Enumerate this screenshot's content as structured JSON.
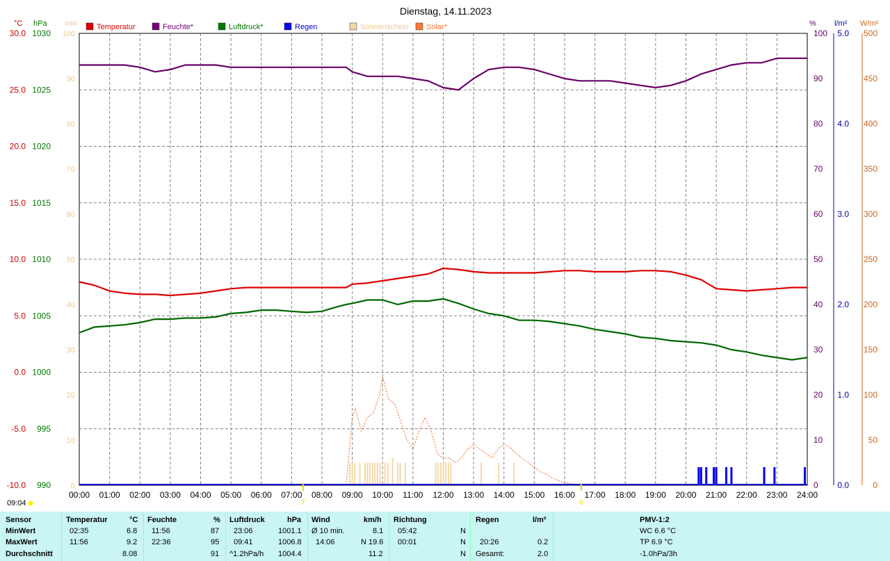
{
  "chart_data": {
    "type": "line",
    "title": "Dienstag, 14.11.2023",
    "x_ticks": [
      "00:00",
      "01:00",
      "02:00",
      "03:00",
      "04:00",
      "05:00",
      "06:00",
      "07:00",
      "08:00",
      "09:00",
      "10:00",
      "11:00",
      "12:00",
      "13:00",
      "14:00",
      "15:00",
      "16:00",
      "17:00",
      "18:00",
      "19:00",
      "20:00",
      "21:00",
      "22:00",
      "23:00",
      "24:00"
    ],
    "axes": {
      "temperature": {
        "unit": "°C",
        "ylim": [
          -10,
          30
        ],
        "ticks": [
          "30.0",
          "25.0",
          "20.0",
          "15.0",
          "10.0",
          "5.0",
          "0.0",
          "-5.0",
          "-10.0"
        ],
        "color": "#cc0000"
      },
      "pressure": {
        "unit": "hPa",
        "ylim": [
          990,
          1030
        ],
        "ticks": [
          "1030",
          "1025",
          "1020",
          "1015",
          "1010",
          "1005",
          "1000",
          "995",
          "990"
        ],
        "color": "#007700"
      },
      "sunshine": {
        "unit": "min",
        "ylim": [
          0,
          100
        ],
        "ticks": [
          "100",
          "90",
          "80",
          "70",
          "60",
          "50",
          "40",
          "30",
          "20",
          "10",
          "0"
        ],
        "color": "#f0c88c"
      },
      "humidity": {
        "unit": "%",
        "ylim": [
          0,
          100
        ],
        "ticks": [
          "100",
          "90",
          "80",
          "70",
          "60",
          "50",
          "40",
          "30",
          "20",
          "10",
          "0"
        ],
        "color": "#660066"
      },
      "rain": {
        "unit": "l/m²",
        "ylim": [
          0,
          5
        ],
        "ticks": [
          "5.0",
          "4.0",
          "3.0",
          "2.0",
          "1.0",
          "0.0"
        ],
        "color": "#0000aa"
      },
      "solar": {
        "unit": "W/m²",
        "ylim": [
          0,
          500
        ],
        "ticks": [
          "500",
          "450",
          "400",
          "350",
          "300",
          "250",
          "200",
          "150",
          "100",
          "50",
          "0"
        ],
        "color": "#cc6622"
      }
    },
    "legend": [
      {
        "name": "Temperatur",
        "color": "#e00000"
      },
      {
        "name": "Feuchte*",
        "color": "#770077"
      },
      {
        "name": "Luftdruck*",
        "color": "#007700"
      },
      {
        "name": "Regen",
        "color": "#0000ee"
      },
      {
        "name": "Sonnenschein",
        "color": "#f0d8a8"
      },
      {
        "name": "Solar*",
        "color": "#ff7733"
      }
    ],
    "series": [
      {
        "name": "Temperatur",
        "axis": "temperature",
        "color": "#dd0000",
        "x": [
          0,
          0.5,
          1,
          1.5,
          2,
          2.5,
          3,
          3.5,
          4,
          4.5,
          5,
          5.5,
          6,
          6.5,
          7,
          7.5,
          8,
          8.5,
          8.8,
          9,
          9.5,
          10,
          10.5,
          11,
          11.5,
          12,
          12.5,
          13,
          13.5,
          14,
          14.5,
          15,
          15.5,
          16,
          16.5,
          17,
          17.5,
          18,
          18.5,
          19,
          19.5,
          20,
          20.5,
          21,
          21.5,
          22,
          22.5,
          23,
          23.5,
          24
        ],
        "y": [
          8.0,
          7.7,
          7.2,
          7.0,
          6.9,
          6.9,
          6.8,
          6.9,
          7.0,
          7.2,
          7.4,
          7.5,
          7.5,
          7.5,
          7.5,
          7.5,
          7.5,
          7.5,
          7.5,
          7.8,
          7.9,
          8.1,
          8.3,
          8.5,
          8.7,
          9.2,
          9.1,
          8.9,
          8.8,
          8.8,
          8.8,
          8.8,
          8.9,
          9.0,
          9.0,
          8.9,
          8.9,
          8.9,
          9.0,
          9.0,
          8.9,
          8.6,
          8.2,
          7.4,
          7.3,
          7.2,
          7.3,
          7.4,
          7.5,
          7.5
        ]
      },
      {
        "name": "Feuchte*",
        "axis": "humidity",
        "color": "#660066",
        "x": [
          0,
          0.5,
          1,
          1.5,
          2,
          2.5,
          3,
          3.5,
          4,
          4.5,
          5,
          5.5,
          6,
          6.5,
          7,
          7.5,
          8,
          8.5,
          8.8,
          9,
          9.5,
          10,
          10.5,
          11,
          11.5,
          12,
          12.5,
          13,
          13.5,
          14,
          14.5,
          15,
          15.5,
          16,
          16.5,
          17,
          17.5,
          18,
          18.5,
          19,
          19.5,
          20,
          20.5,
          21,
          21.5,
          22,
          22.5,
          23,
          23.5,
          24
        ],
        "y": [
          93,
          93,
          93,
          93,
          92.5,
          91.5,
          92,
          93,
          93,
          93,
          92.5,
          92.5,
          92.5,
          92.5,
          92.5,
          92.5,
          92.5,
          92.5,
          92.5,
          91.5,
          90.5,
          90.5,
          90.5,
          90,
          89.5,
          88,
          87.5,
          90,
          92,
          92.5,
          92.5,
          92,
          91,
          90,
          89.5,
          89.5,
          89.5,
          89,
          88.5,
          88,
          88.5,
          89.5,
          91,
          92,
          93,
          93.5,
          93.5,
          94.5,
          94.5,
          94.5
        ]
      },
      {
        "name": "Luftdruck*",
        "axis": "pressure",
        "color": "#006600",
        "x": [
          0,
          0.5,
          1,
          1.5,
          2,
          2.5,
          3,
          3.5,
          4,
          4.5,
          5,
          5.5,
          6,
          6.5,
          7,
          7.5,
          8,
          8.5,
          8.8,
          9,
          9.5,
          10,
          10.5,
          11,
          11.5,
          12,
          12.5,
          13,
          13.5,
          14,
          14.5,
          15,
          15.5,
          16,
          16.5,
          17,
          17.5,
          18,
          18.5,
          19,
          19.5,
          20,
          20.5,
          21,
          21.5,
          22,
          22.5,
          23,
          23.5,
          24
        ],
        "y": [
          1003.5,
          1004.0,
          1004.1,
          1004.2,
          1004.4,
          1004.7,
          1004.7,
          1004.8,
          1004.8,
          1004.9,
          1005.2,
          1005.3,
          1005.5,
          1005.5,
          1005.4,
          1005.3,
          1005.4,
          1005.8,
          1006.0,
          1006.1,
          1006.4,
          1006.4,
          1006.0,
          1006.3,
          1006.3,
          1006.5,
          1006.1,
          1005.6,
          1005.2,
          1005.0,
          1004.6,
          1004.6,
          1004.5,
          1004.3,
          1004.1,
          1003.8,
          1003.6,
          1003.4,
          1003.1,
          1003.0,
          1002.8,
          1002.7,
          1002.6,
          1002.4,
          1002.0,
          1001.8,
          1001.5,
          1001.3,
          1001.1,
          1001.3
        ]
      },
      {
        "name": "Solar*",
        "axis": "solar",
        "color": "#ee6622",
        "dashed": true,
        "x": [
          8.8,
          9.0,
          9.1,
          9.3,
          9.5,
          9.7,
          9.9,
          10.0,
          10.2,
          10.4,
          10.6,
          10.8,
          11.0,
          11.2,
          11.4,
          11.6,
          11.8,
          12.0,
          12.2,
          12.4,
          12.6,
          12.8,
          13.0,
          13.2,
          13.4,
          13.6,
          13.8,
          14.0,
          14.2,
          14.4,
          14.6,
          14.8,
          15.0,
          15.2,
          15.4,
          15.6,
          15.8,
          16.0,
          16.3,
          16.5
        ],
        "y": [
          0,
          75,
          85,
          60,
          75,
          80,
          100,
          120,
          95,
          90,
          70,
          50,
          40,
          60,
          75,
          60,
          35,
          30,
          30,
          25,
          30,
          40,
          45,
          40,
          35,
          30,
          40,
          45,
          42,
          35,
          30,
          25,
          20,
          15,
          12,
          8,
          5,
          3,
          1,
          0
        ]
      }
    ],
    "sunshine_bars_minutes": [
      {
        "x": 8.92,
        "y": 5
      },
      {
        "x": 9.0,
        "y": 5
      },
      {
        "x": 9.08,
        "y": 5
      },
      {
        "x": 9.25,
        "y": 5
      },
      {
        "x": 9.42,
        "y": 5
      },
      {
        "x": 9.5,
        "y": 5
      },
      {
        "x": 9.58,
        "y": 5
      },
      {
        "x": 9.67,
        "y": 5
      },
      {
        "x": 9.75,
        "y": 5
      },
      {
        "x": 9.83,
        "y": 5
      },
      {
        "x": 9.92,
        "y": 5
      },
      {
        "x": 10.08,
        "y": 5
      },
      {
        "x": 10.17,
        "y": 5
      },
      {
        "x": 10.33,
        "y": 6
      },
      {
        "x": 10.5,
        "y": 5
      },
      {
        "x": 10.58,
        "y": 5
      },
      {
        "x": 10.75,
        "y": 5
      },
      {
        "x": 11.75,
        "y": 5
      },
      {
        "x": 11.83,
        "y": 5
      },
      {
        "x": 11.92,
        "y": 5
      },
      {
        "x": 12.0,
        "y": 5
      },
      {
        "x": 12.08,
        "y": 5
      },
      {
        "x": 12.17,
        "y": 5
      },
      {
        "x": 12.25,
        "y": 5
      },
      {
        "x": 13.25,
        "y": 5
      },
      {
        "x": 13.83,
        "y": 5
      },
      {
        "x": 14.33,
        "y": 5
      }
    ],
    "rain_bars": [
      20.42,
      20.5,
      20.67,
      20.92,
      21.0,
      21.33,
      21.5,
      22.58,
      22.92,
      23.92
    ],
    "sunrise_x": 7.38,
    "sunset_x": 16.55,
    "sunrise_label": "7",
    "sunset_label": "0",
    "time_marker": "09:04",
    "grid": true
  },
  "table": {
    "sensor": {
      "header": "Sensor",
      "min": "MinWert",
      "max": "MaxWert",
      "avg": "Durchschnitt"
    },
    "temperature": {
      "header": "Temperatur",
      "unit": "°C",
      "min_time": "02:35",
      "min_val": "6.8",
      "max_time": "11:56",
      "max_val": "9.2",
      "avg_val": "8.08"
    },
    "humidity": {
      "header": "Feuchte",
      "unit": "%",
      "min_time": "11:56",
      "min_val": "87",
      "max_time": "22:36",
      "max_val": "95",
      "avg_val": "91"
    },
    "pressure": {
      "header": "Luftdruck",
      "unit": "hPa",
      "min_time": "23:06",
      "min_val": "1001.1",
      "max_time": "09:41",
      "max_val": "1006.8",
      "avg_label": "^1.2hPa/h",
      "avg_val": "1004.4"
    },
    "wind": {
      "header": "Wind",
      "unit": "km/h",
      "min_label": "Ø 10 min.",
      "min_val": "8.1",
      "max_time": "14:06",
      "max_val": "N 19.6",
      "avg_val": "11.2"
    },
    "direction": {
      "header": "Richtung",
      "min_time": "05:42",
      "min_val": "N",
      "max_time": "00:01",
      "max_val": "N",
      "avg_val": "N"
    },
    "rain": {
      "header": "Regen",
      "unit": "l/m²",
      "max_time": "20:26",
      "max_val": "0.2",
      "total_label": "Gesamt:",
      "total_val": "2.0"
    },
    "pmv": {
      "header": "PMV-1:2",
      "line1": "WC 6.6 °C",
      "line2": "TP 6.9 °C",
      "line3": "-1.0hPa/3h"
    }
  }
}
